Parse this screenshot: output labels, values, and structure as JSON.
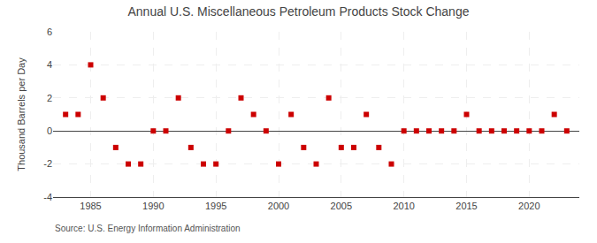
{
  "chart_data": {
    "type": "scatter",
    "title": "Annual U.S. Miscellaneous Petroleum Products Stock Change",
    "ylabel": "Thousand Barrels per Day",
    "annotations": [
      "Source: U.S. Energy Information Administration"
    ],
    "x": [
      1983,
      1984,
      1985,
      1986,
      1987,
      1988,
      1989,
      1990,
      1991,
      1992,
      1993,
      1994,
      1995,
      1996,
      1997,
      1998,
      1999,
      2000,
      2001,
      2002,
      2003,
      2004,
      2005,
      2006,
      2007,
      2008,
      2009,
      2010,
      2011,
      2012,
      2013,
      2014,
      2015,
      2016,
      2017,
      2018,
      2019,
      2020,
      2021,
      2022,
      2023
    ],
    "values": [
      1,
      1,
      4,
      2,
      -1,
      -2,
      -2,
      0,
      0,
      2,
      -1,
      -2,
      -2,
      0,
      2,
      1,
      0,
      -2,
      1,
      -1,
      -2,
      2,
      -1,
      -1,
      1,
      -1,
      -2,
      0,
      0,
      0,
      0,
      0,
      1,
      0,
      0,
      0,
      0,
      0,
      0,
      1,
      0
    ],
    "color": "#cc0000",
    "marker": "square",
    "xlim": [
      1982,
      2024
    ],
    "xticks": [
      1985,
      1990,
      1995,
      2000,
      2005,
      2010,
      2015,
      2020
    ],
    "ylim": [
      -4,
      6
    ],
    "yticks": [
      -4,
      -2,
      0,
      2,
      4,
      6
    ],
    "grid": true
  }
}
